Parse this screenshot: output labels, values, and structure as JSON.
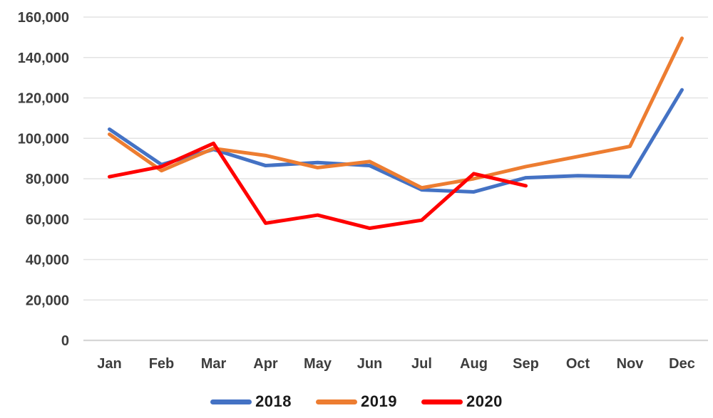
{
  "chart_data": {
    "type": "line",
    "title": "",
    "xlabel": "",
    "ylabel": "",
    "categories": [
      "Jan",
      "Feb",
      "Mar",
      "Apr",
      "May",
      "Jun",
      "Jul",
      "Aug",
      "Sep",
      "Oct",
      "Nov",
      "Dec"
    ],
    "series": [
      {
        "name": "2018",
        "color": "#4472C4",
        "values": [
          104500,
          87000,
          94500,
          86500,
          88000,
          86500,
          74500,
          73500,
          80500,
          81500,
          81000,
          124000
        ]
      },
      {
        "name": "2019",
        "color": "#ED7D31",
        "values": [
          102000,
          84000,
          95000,
          91500,
          85500,
          88500,
          75500,
          80000,
          86000,
          91000,
          96000,
          149500
        ]
      },
      {
        "name": "2020",
        "color": "#FF0000",
        "values": [
          81000,
          86000,
          97500,
          58000,
          62000,
          55500,
          59500,
          82500,
          76500
        ]
      }
    ],
    "ylim": [
      0,
      160000
    ],
    "ytick_values": [
      0,
      20000,
      40000,
      60000,
      80000,
      100000,
      120000,
      140000,
      160000
    ],
    "ytick_labels": [
      "0",
      "20,000",
      "40,000",
      "60,000",
      "80,000",
      "100,000",
      "120,000",
      "140,000",
      "160,000"
    ],
    "grid": "horizontal",
    "legend_position": "bottom"
  }
}
